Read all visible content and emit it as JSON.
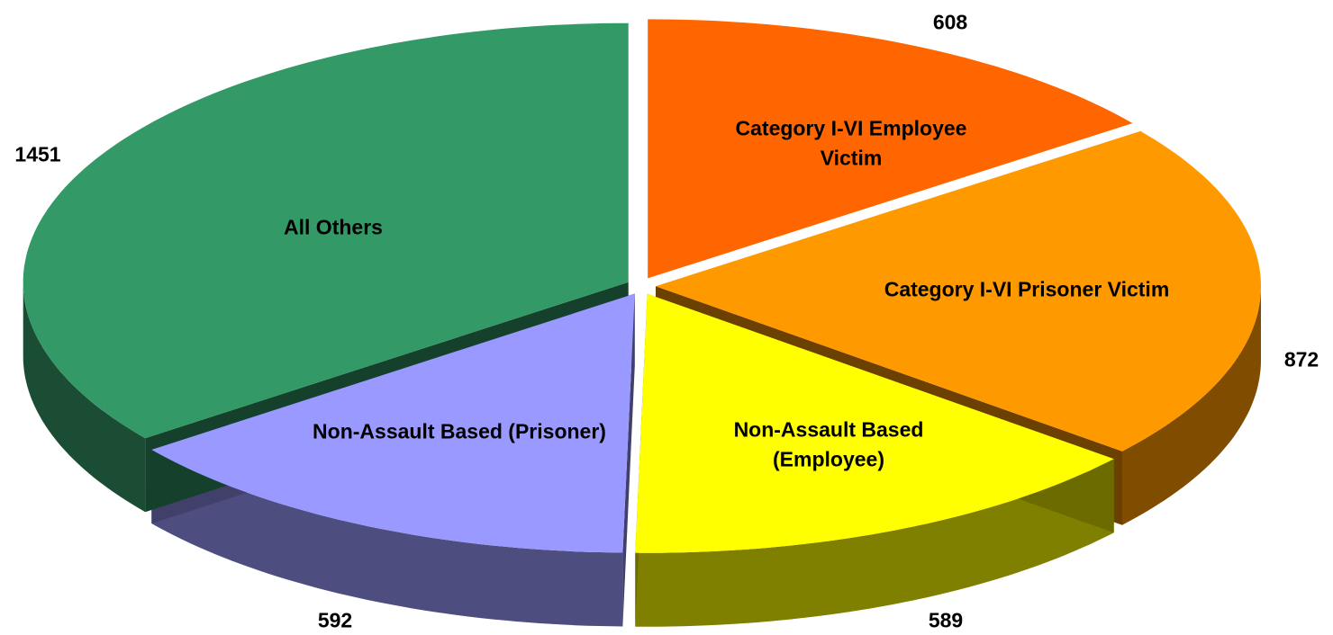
{
  "chart_data": {
    "type": "pie",
    "categories": [
      "Category I-VI Employee Victim",
      "Category I-VI Prisoner Victim",
      "Non-Assault Based (Employee)",
      "Non-Assault Based (Prisoner)",
      "All Others"
    ],
    "values": [
      608,
      872,
      589,
      592,
      1451
    ],
    "colors": [
      "#ff6600",
      "#ff9900",
      "#ffff00",
      "#9999ff",
      "#339966"
    ]
  }
}
